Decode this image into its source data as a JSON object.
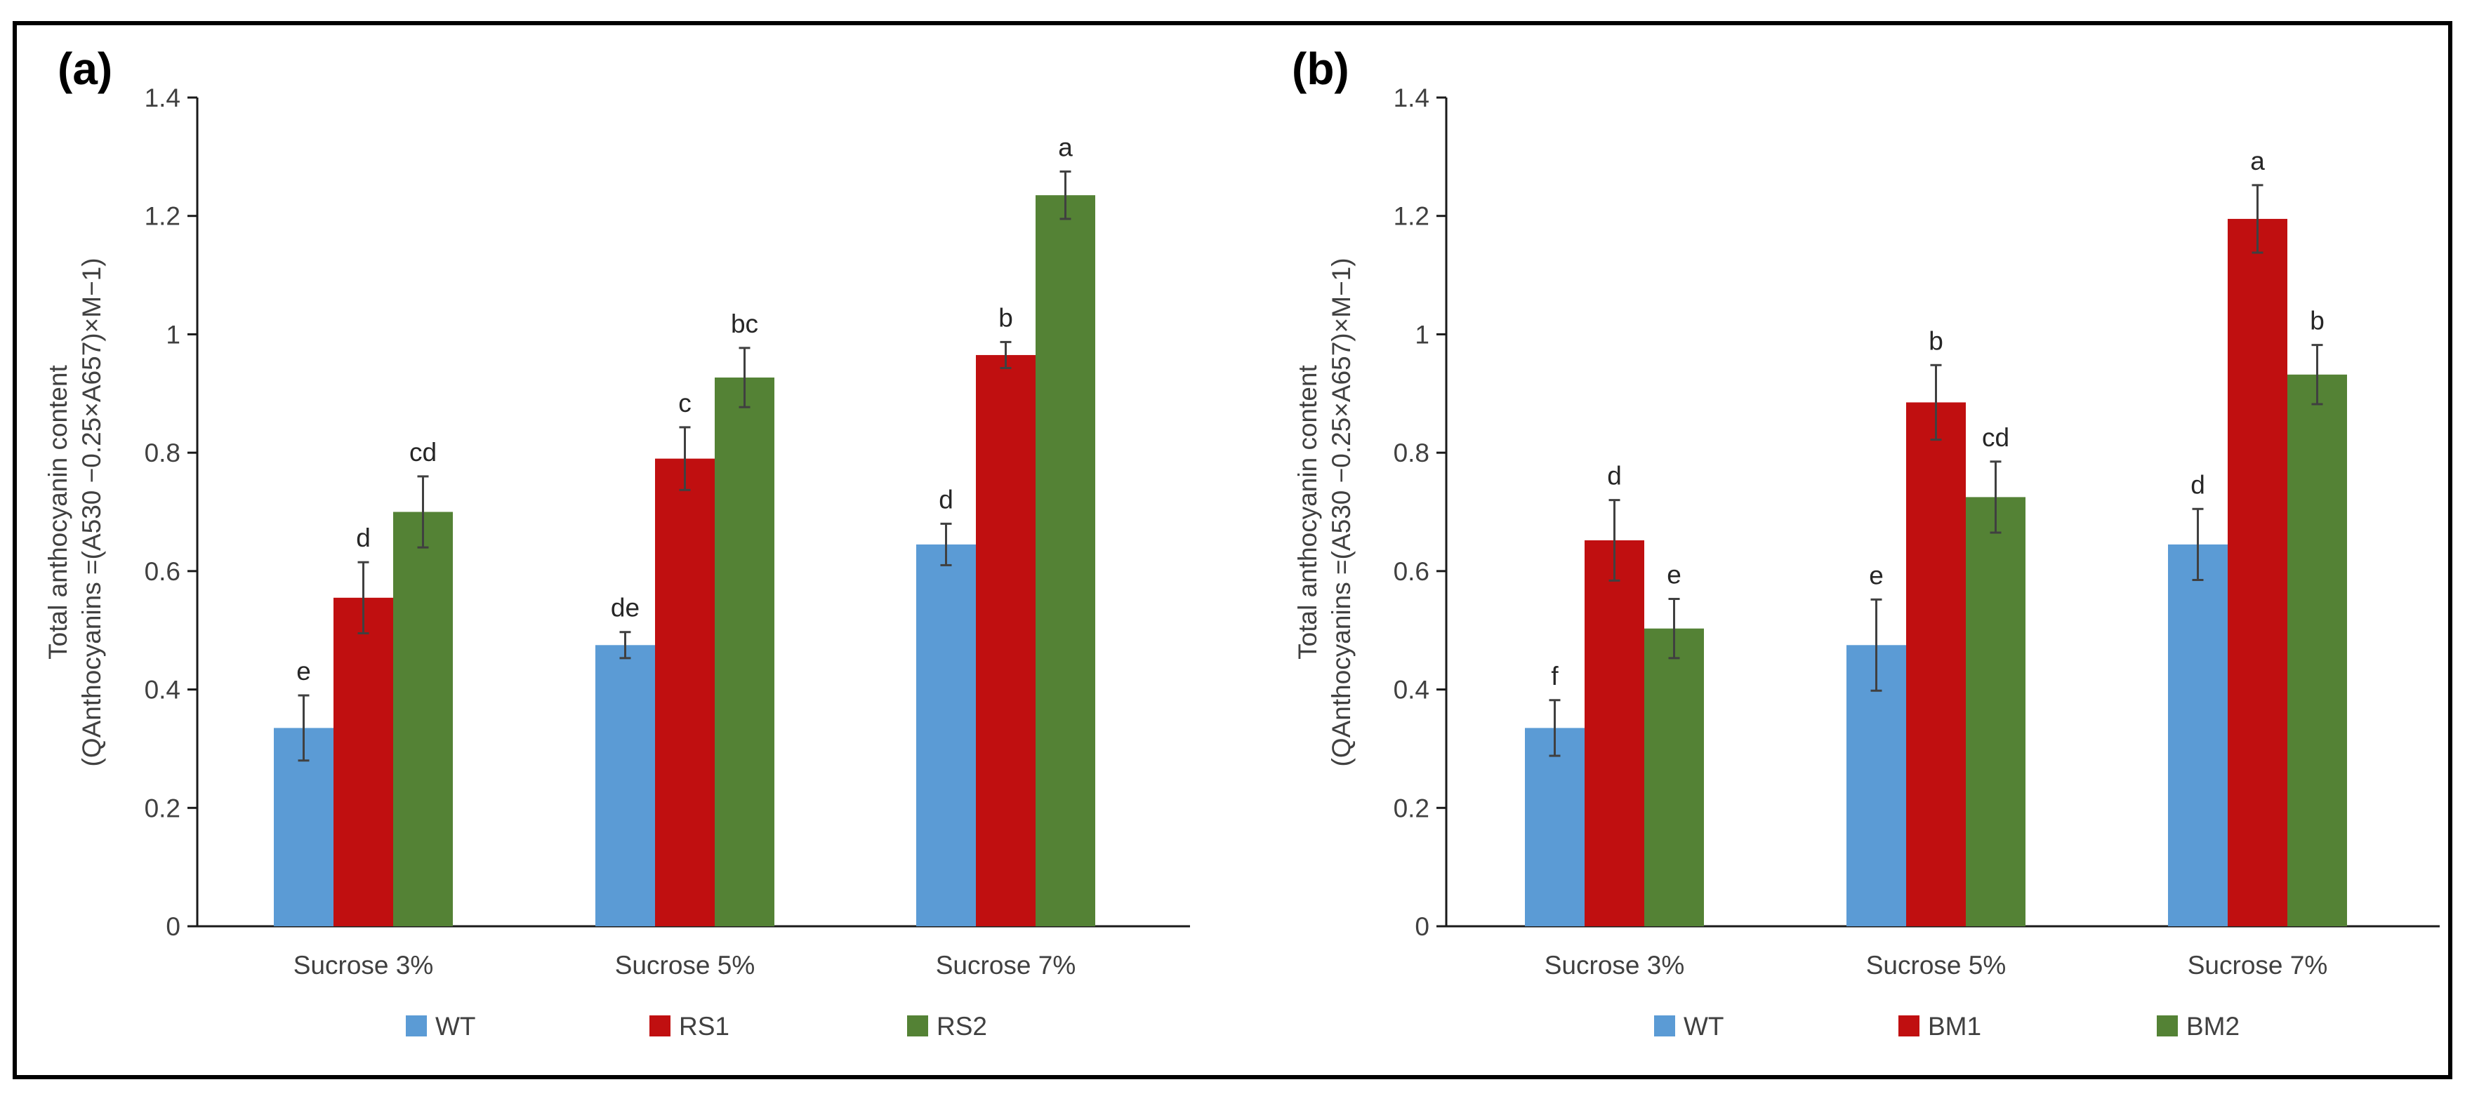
{
  "chart_data": [
    {
      "type": "bar",
      "panel_label": "(a)",
      "ylabel_line1": "Total anthocyanin content",
      "ylabel_line2": "(QAnthocyanins =(A530 −0.25×A657)×M−1)",
      "ylim": [
        0,
        1.4
      ],
      "yticks": [
        0,
        0.2,
        0.4,
        0.6,
        0.8,
        1,
        1.2,
        1.4
      ],
      "ytick_labels": [
        "0",
        "0.2",
        "0.4",
        "0.6",
        "0.8",
        "1",
        "1.2",
        "1.4"
      ],
      "categories": [
        "Sucrose 3%",
        "Sucrose 5%",
        "Sucrose 7%"
      ],
      "series": [
        {
          "name": "WT",
          "color": "#5b9bd5",
          "values": [
            0.335,
            0.475,
            0.645
          ],
          "errors": [
            0.055,
            0.022,
            0.035
          ],
          "labels": [
            "e",
            "de",
            "d"
          ]
        },
        {
          "name": "RS1",
          "color": "#c00f10",
          "values": [
            0.555,
            0.79,
            0.965
          ],
          "errors": [
            0.06,
            0.053,
            0.022
          ],
          "labels": [
            "d",
            "c",
            "b"
          ]
        },
        {
          "name": "RS2",
          "color": "#548235",
          "values": [
            0.7,
            0.927,
            1.235
          ],
          "errors": [
            0.06,
            0.05,
            0.04
          ],
          "labels": [
            "cd",
            "bc",
            "a"
          ]
        }
      ],
      "legend_position": "bottom"
    },
    {
      "type": "bar",
      "panel_label": "(b)",
      "ylabel_line1": "Total anthocyanin content",
      "ylabel_line2": "(QAnthocyanins =(A530 −0.25×A657)×M−1)",
      "ylim": [
        0,
        1.4
      ],
      "yticks": [
        0,
        0.2,
        0.4,
        0.6,
        0.8,
        1,
        1.2,
        1.4
      ],
      "ytick_labels": [
        "0",
        "0.2",
        "0.4",
        "0.6",
        "0.8",
        "1",
        "1.2",
        "1.4"
      ],
      "categories": [
        "Sucrose 3%",
        "Sucrose 5%",
        "Sucrose 7%"
      ],
      "series": [
        {
          "name": "WT",
          "color": "#5b9bd5",
          "values": [
            0.335,
            0.475,
            0.645
          ],
          "errors": [
            0.047,
            0.077,
            0.06
          ],
          "labels": [
            "f",
            "e",
            "d"
          ]
        },
        {
          "name": "BM1",
          "color": "#c00f10",
          "values": [
            0.652,
            0.885,
            1.195
          ],
          "errors": [
            0.068,
            0.063,
            0.057
          ],
          "labels": [
            "d",
            "b",
            "a"
          ]
        },
        {
          "name": "BM2",
          "color": "#548235",
          "values": [
            0.503,
            0.725,
            0.932
          ],
          "errors": [
            0.05,
            0.06,
            0.05
          ],
          "labels": [
            "e",
            "cd",
            "b"
          ]
        }
      ],
      "legend_position": "bottom"
    }
  ]
}
